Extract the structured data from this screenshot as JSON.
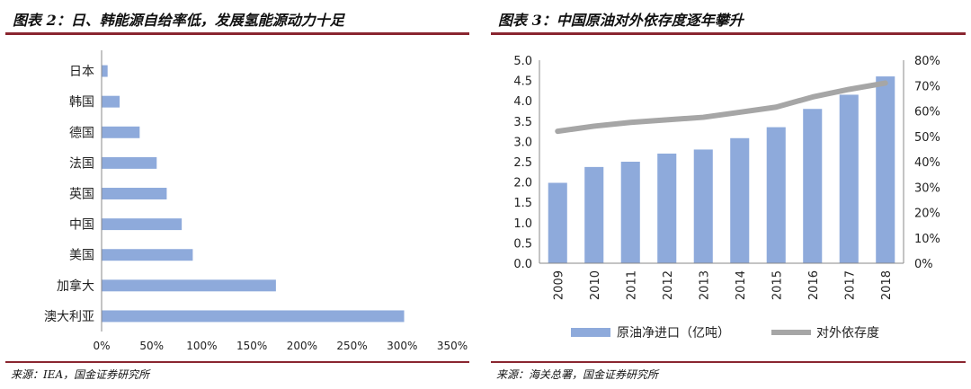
{
  "chart_data": [
    {
      "type": "bar",
      "orientation": "horizontal",
      "title": "图表 2：日、韩能源自给率低，发展氢能源动力十足",
      "source": "来源：IEA，国金证券研究所",
      "categories": [
        "日本",
        "韩国",
        "德国",
        "法国",
        "英国",
        "中国",
        "美国",
        "加拿大",
        "澳大利亚"
      ],
      "values": [
        0.06,
        0.18,
        0.38,
        0.55,
        0.65,
        0.8,
        0.91,
        1.74,
        3.02
      ],
      "xlim": [
        0,
        3.5
      ],
      "xticks": [
        "0%",
        "50%",
        "100%",
        "150%",
        "200%",
        "250%",
        "300%",
        "350%"
      ],
      "grid": false,
      "color": "#8eaadb"
    },
    {
      "type": "bar+line",
      "title": "图表 3：中国原油对外依存度逐年攀升",
      "source": "来源：海关总署，国金证券研究所",
      "categories": [
        "2009",
        "2010",
        "2011",
        "2012",
        "2013",
        "2014",
        "2015",
        "2016",
        "2017",
        "2018"
      ],
      "series": [
        {
          "name": "原油净进口（亿吨）",
          "type": "bar",
          "axis": "left",
          "color": "#8eaadb",
          "values": [
            1.98,
            2.37,
            2.5,
            2.7,
            2.8,
            3.08,
            3.35,
            3.8,
            4.15,
            4.6
          ]
        },
        {
          "name": "对外依存度",
          "type": "line",
          "axis": "right",
          "color": "#a6a6a6",
          "values": [
            0.52,
            0.54,
            0.555,
            0.565,
            0.575,
            0.595,
            0.615,
            0.655,
            0.685,
            0.71
          ]
        }
      ],
      "ylim_left": [
        0,
        5
      ],
      "yticks_left": [
        "0.0",
        "0.5",
        "1.0",
        "1.5",
        "2.0",
        "2.5",
        "3.0",
        "3.5",
        "4.0",
        "4.5",
        "5.0"
      ],
      "ylim_right": [
        0,
        0.8
      ],
      "yticks_right": [
        "0%",
        "10%",
        "20%",
        "30%",
        "40%",
        "50%",
        "60%",
        "70%",
        "80%"
      ],
      "grid": false,
      "legend_position": "bottom"
    }
  ]
}
